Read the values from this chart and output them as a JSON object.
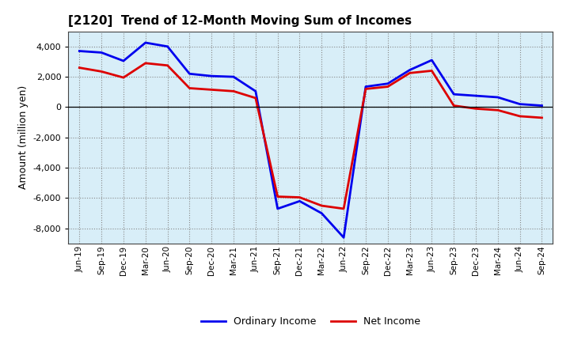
{
  "title": "[2120]  Trend of 12-Month Moving Sum of Incomes",
  "ylabel": "Amount (million yen)",
  "x_labels": [
    "Jun-19",
    "Sep-19",
    "Dec-19",
    "Mar-20",
    "Jun-20",
    "Sep-20",
    "Dec-20",
    "Mar-21",
    "Jun-21",
    "Sep-21",
    "Dec-21",
    "Mar-22",
    "Jun-22",
    "Sep-22",
    "Dec-22",
    "Mar-23",
    "Jun-23",
    "Sep-23",
    "Dec-23",
    "Mar-24",
    "Jun-24",
    "Sep-24"
  ],
  "ordinary_income": [
    3700,
    3600,
    3050,
    4250,
    4000,
    2200,
    2050,
    2000,
    1050,
    -6700,
    -6200,
    -7000,
    -8600,
    1350,
    1550,
    2450,
    3100,
    850,
    750,
    650,
    200,
    100
  ],
  "net_income": [
    2600,
    2350,
    1950,
    2900,
    2750,
    1250,
    1150,
    1050,
    600,
    -5900,
    -5950,
    -6500,
    -6700,
    1200,
    1350,
    2250,
    2400,
    100,
    -100,
    -200,
    -600,
    -700
  ],
  "ordinary_income_color": "#0000EE",
  "net_income_color": "#DD0000",
  "ylim": [
    -9000,
    5000
  ],
  "yticks": [
    -8000,
    -6000,
    -4000,
    -2000,
    0,
    2000,
    4000
  ],
  "axes_facecolor": "#D8EEF8",
  "figure_facecolor": "#FFFFFF",
  "grid_color": "#AAAAAA",
  "line_width": 2.0
}
